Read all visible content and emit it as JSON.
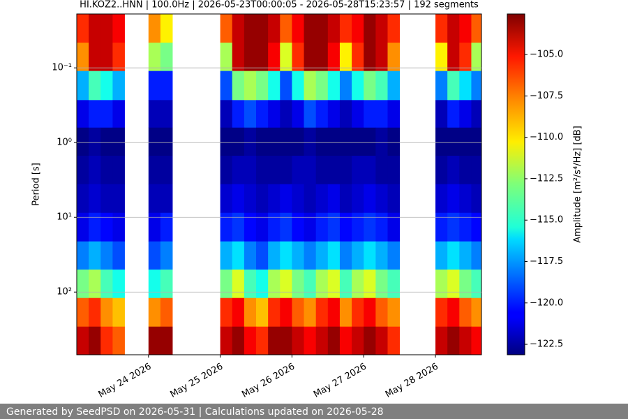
{
  "chart_data": {
    "type": "heatmap",
    "title": "HI.KOZ2..HNN | 100.0Hz | 2026-05-23T00:00:05 - 2026-05-28T15:23:57 | 192 segments",
    "y_label": "Period [s]",
    "colorbar_label": "Amplitude [m²/s⁴/Hz] [dB]",
    "colormap": "jet",
    "y_scale": "log",
    "y_inverted": true,
    "grid": "y",
    "xlim": [
      "2026-05-23T00:00:05",
      "2026-05-28T15:23:57"
    ],
    "xticks": [
      {
        "value": "2026-05-24T00:00",
        "label": "May 24 2026"
      },
      {
        "value": "2026-05-25T00:00",
        "label": "May 25 2026"
      },
      {
        "value": "2026-05-26T00:00",
        "label": "May 26 2026"
      },
      {
        "value": "2026-05-27T00:00",
        "label": "May 27 2026"
      },
      {
        "value": "2026-05-28T00:00",
        "label": "May 28 2026"
      }
    ],
    "ylim": [
      0.019,
      690
    ],
    "yticks": [
      {
        "value": 0.1,
        "label": "10⁻¹"
      },
      {
        "value": 1,
        "label": "10⁰"
      },
      {
        "value": 10,
        "label": "10¹"
      },
      {
        "value": 100,
        "label": "10²"
      }
    ],
    "clim": [
      -123.13,
      -102.55
    ],
    "cticks": [
      {
        "value": -105,
        "label": "−105.0"
      },
      {
        "value": -107.5,
        "label": "−107.5"
      },
      {
        "value": -110,
        "label": "−110.0"
      },
      {
        "value": -112.5,
        "label": "−112.5"
      },
      {
        "value": -115,
        "label": "−115.0"
      },
      {
        "value": -117.5,
        "label": "−117.5"
      },
      {
        "value": -120,
        "label": "−120.0"
      },
      {
        "value": -122.5,
        "label": "−122.5"
      }
    ],
    "x_bins": [
      "2026-05-23T00:00",
      "2026-05-23T04:00",
      "2026-05-23T08:00",
      "2026-05-23T12:00",
      "2026-05-23T16:00",
      "2026-05-23T20:00",
      "2026-05-24T00:00",
      "2026-05-24T04:00",
      "2026-05-24T08:00",
      "2026-05-24T12:00",
      "2026-05-24T16:00",
      "2026-05-24T20:00",
      "2026-05-25T00:00",
      "2026-05-25T04:00",
      "2026-05-25T08:00",
      "2026-05-25T12:00",
      "2026-05-25T16:00",
      "2026-05-25T20:00",
      "2026-05-26T00:00",
      "2026-05-26T04:00",
      "2026-05-26T08:00",
      "2026-05-26T12:00",
      "2026-05-26T16:00",
      "2026-05-26T20:00",
      "2026-05-27T00:00",
      "2026-05-27T04:00",
      "2026-05-27T08:00",
      "2026-05-27T12:00",
      "2026-05-27T16:00",
      "2026-05-27T20:00",
      "2026-05-28T00:00",
      "2026-05-28T04:00",
      "2026-05-28T08:00",
      "2026-05-28T12:00",
      "2026-05-28T16:00"
    ],
    "y_bins": [
      0.019,
      0.046,
      0.11,
      0.27,
      0.63,
      1.5,
      3.6,
      8.7,
      21,
      50,
      120,
      290,
      690
    ],
    "values": [
      [
        -106,
        -104,
        -104,
        -105,
        null,
        null,
        -108,
        -110,
        null,
        null,
        null,
        null,
        -107,
        -104,
        -103,
        -103,
        -104,
        -107,
        -105,
        -103,
        -103,
        -104,
        -106,
        -105,
        -103,
        -104,
        -106,
        null,
        null,
        null,
        -106,
        -104,
        -105,
        -107
      ],
      [
        -108,
        -104,
        -104,
        -106,
        null,
        null,
        -112,
        -113,
        null,
        null,
        null,
        null,
        -112,
        -104,
        -103,
        -103,
        -105,
        -111,
        -106,
        -103,
        -103,
        -105,
        -110,
        -106,
        -103,
        -104,
        -108,
        null,
        null,
        null,
        -110,
        -104,
        -106,
        -112
      ],
      [
        -117,
        -114,
        -115,
        -117,
        null,
        null,
        -120,
        -120,
        null,
        null,
        null,
        null,
        -119,
        -113,
        -112,
        -113,
        -115,
        -119,
        -115,
        -112,
        -113,
        -115,
        -118,
        -115,
        -113,
        -114,
        -117,
        null,
        null,
        null,
        -118,
        -114,
        -116,
        -118
      ],
      [
        -121,
        -120,
        -120,
        -121,
        null,
        null,
        -122,
        -122,
        null,
        null,
        null,
        null,
        -122,
        -120,
        -119,
        -120,
        -121,
        -122,
        -121,
        -119,
        -120,
        -121,
        -122,
        -121,
        -120,
        -120,
        -121,
        null,
        null,
        null,
        -122,
        -120,
        -121,
        -122
      ],
      [
        -123,
        -122.5,
        -123,
        -123,
        null,
        null,
        -123,
        -123,
        null,
        null,
        null,
        null,
        -123,
        -123,
        -122.5,
        -123,
        -123,
        -123,
        -123,
        -122.5,
        -123,
        -123,
        -123,
        -123,
        -123,
        -122.5,
        -123,
        null,
        null,
        null,
        -123,
        -123,
        -123,
        -123
      ],
      [
        -122.5,
        -122,
        -122.5,
        -122.5,
        null,
        null,
        -122.5,
        -122.5,
        null,
        null,
        null,
        null,
        -122.5,
        -122,
        -122,
        -122.5,
        -122.5,
        -122.5,
        -122,
        -122,
        -122.5,
        -122.5,
        -122.5,
        -122,
        -122,
        -122.5,
        -122.5,
        null,
        null,
        null,
        -122.5,
        -122,
        -122.5,
        -122.5
      ],
      [
        -122,
        -121.5,
        -122,
        -122,
        null,
        null,
        -122,
        -122,
        null,
        null,
        null,
        null,
        -121.5,
        -121,
        -121.5,
        -122,
        -121.5,
        -121,
        -121.5,
        -122,
        -121.5,
        -121,
        -122,
        -121.5,
        -121,
        -121.5,
        -122,
        null,
        null,
        null,
        -121.5,
        -121,
        -121.5,
        -122
      ],
      [
        -121,
        -120,
        -120.5,
        -121,
        null,
        null,
        -121,
        -120,
        null,
        null,
        null,
        null,
        -120,
        -119.5,
        -120.5,
        -121,
        -120,
        -119.5,
        -120.5,
        -121,
        -120,
        -119.5,
        -120.5,
        -120,
        -119.5,
        -120,
        -121,
        null,
        null,
        null,
        -120,
        -119.5,
        -120,
        -120.5
      ],
      [
        -118,
        -117,
        -118,
        -119,
        null,
        null,
        -119,
        -118,
        null,
        null,
        null,
        null,
        -117,
        -116,
        -118,
        -119,
        -117,
        -116,
        -117,
        -118,
        -117,
        -116,
        -118,
        -117,
        -116,
        -117,
        -118,
        null,
        null,
        null,
        -117,
        -116,
        -117,
        -118
      ],
      [
        -113,
        -112,
        -114,
        -115,
        null,
        null,
        -115,
        -114,
        null,
        null,
        null,
        null,
        -113,
        -111,
        -114,
        -115,
        -112,
        -111,
        -113,
        -114,
        -112,
        -111,
        -114,
        -112,
        -111,
        -113,
        -114,
        null,
        null,
        null,
        -112,
        -111,
        -113,
        -114
      ],
      [
        -107,
        -106,
        -108,
        -109,
        null,
        null,
        -108,
        -107,
        null,
        null,
        null,
        null,
        -106,
        -105,
        -108,
        -109,
        -106,
        -105,
        -107,
        -108,
        -106,
        -105,
        -108,
        -106,
        -105,
        -107,
        -108,
        null,
        null,
        null,
        -106,
        -105,
        -107,
        -108
      ],
      [
        -104,
        -103,
        -106,
        -107,
        null,
        null,
        -103,
        -103,
        null,
        null,
        null,
        null,
        -104,
        -103,
        -105,
        -106,
        -103,
        -103,
        -104,
        -105,
        -104,
        -103,
        -105,
        -104,
        -103,
        -104,
        -106,
        null,
        null,
        null,
        -104,
        -103,
        -104,
        -105
      ]
    ]
  },
  "footer": "Generated by SeedPSD on 2026-05-31 | Calculations updated on 2026-05-28"
}
